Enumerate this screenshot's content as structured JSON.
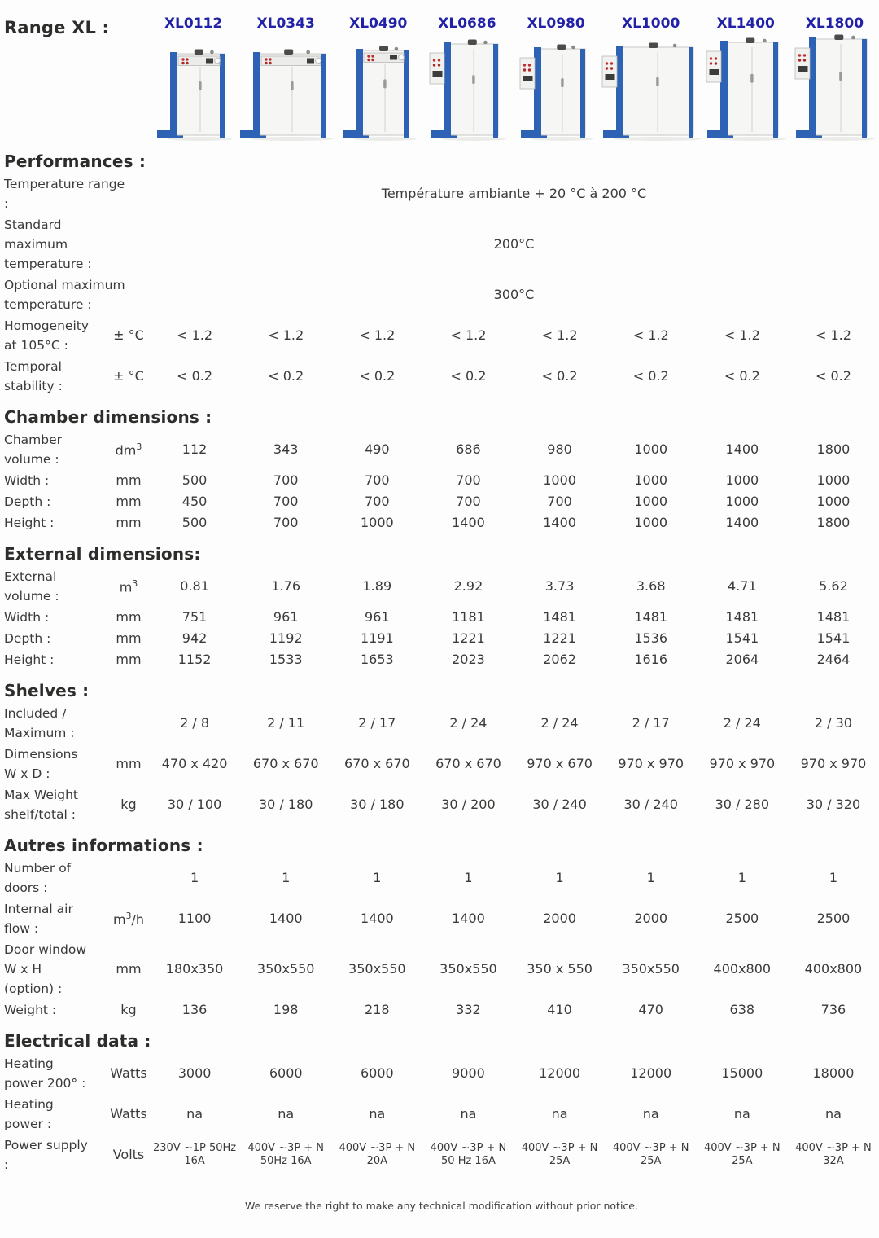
{
  "header": {
    "range_label": "Range XL :",
    "models": [
      "XL0112",
      "XL0343",
      "XL0490",
      "XL0686",
      "XL0980",
      "XL1000",
      "XL1400",
      "XL1800"
    ]
  },
  "colors": {
    "model_name_blue": "#2222a8",
    "oven_frame_blue": "#2d62b5",
    "text_dark": "#3a3a39"
  },
  "sections": [
    {
      "title": "Performances :",
      "rows": [
        {
          "label_lines": [
            "Temperature range",
            ":"
          ],
          "unit": "",
          "span_value": "Température ambiante + 20 °C à 200 °C"
        },
        {
          "label_lines": [
            "Standard",
            "maximum",
            "temperature :"
          ],
          "unit": "",
          "span_value": "200°C"
        },
        {
          "label_lines": [
            "Optional maximum",
            "temperature :"
          ],
          "unit": "",
          "span_value": "300°C"
        },
        {
          "label_lines": [
            "Homogeneity",
            "at 105°C :"
          ],
          "unit": "± °C",
          "values": [
            "< 1.2",
            "< 1.2",
            "< 1.2",
            "< 1.2",
            "< 1.2",
            "< 1.2",
            "< 1.2",
            "< 1.2"
          ]
        },
        {
          "label_lines": [
            "Temporal",
            "stability :"
          ],
          "unit": "± °C",
          "values": [
            "< 0.2",
            "< 0.2",
            "< 0.2",
            "< 0.2",
            "< 0.2",
            "< 0.2",
            "< 0.2",
            "< 0.2"
          ]
        }
      ]
    },
    {
      "title": "Chamber dimensions :",
      "rows": [
        {
          "label_lines": [
            "Chamber",
            "volume :"
          ],
          "unit": "dm³",
          "values": [
            "112",
            "343",
            "490",
            "686",
            "980",
            "1000",
            "1400",
            "1800"
          ]
        },
        {
          "label_lines": [
            "Width :"
          ],
          "unit": "mm",
          "values": [
            "500",
            "700",
            "700",
            "700",
            "1000",
            "1000",
            "1000",
            "1000"
          ]
        },
        {
          "label_lines": [
            "Depth :"
          ],
          "unit": "mm",
          "values": [
            "450",
            "700",
            "700",
            "700",
            "700",
            "1000",
            "1000",
            "1000"
          ]
        },
        {
          "label_lines": [
            "Height :"
          ],
          "unit": "mm",
          "values": [
            "500",
            "700",
            "1000",
            "1400",
            "1400",
            "1000",
            "1400",
            "1800"
          ]
        }
      ]
    },
    {
      "title": "External dimensions:",
      "rows": [
        {
          "label_lines": [
            "External",
            "volume :"
          ],
          "unit": "m³",
          "values": [
            "0.81",
            "1.76",
            "1.89",
            "2.92",
            "3.73",
            "3.68",
            "4.71",
            "5.62"
          ]
        },
        {
          "label_lines": [
            "Width :"
          ],
          "unit": "mm",
          "values": [
            "751",
            "961",
            "961",
            "1181",
            "1481",
            "1481",
            "1481",
            "1481"
          ]
        },
        {
          "label_lines": [
            "Depth :"
          ],
          "unit": "mm",
          "values": [
            "942",
            "1192",
            "1191",
            "1221",
            "1221",
            "1536",
            "1541",
            "1541"
          ]
        },
        {
          "label_lines": [
            "Height :"
          ],
          "unit": "mm",
          "values": [
            "1152",
            "1533",
            "1653",
            "2023",
            "2062",
            "1616",
            "2064",
            "2464"
          ]
        }
      ]
    },
    {
      "title": "Shelves :",
      "rows": [
        {
          "label_lines": [
            "Included /",
            "Maximum :"
          ],
          "unit": "",
          "values": [
            "2 / 8",
            "2 / 11",
            "2 / 17",
            "2 / 24",
            "2 / 24",
            "2 / 17",
            "2 / 24",
            "2 / 30"
          ]
        },
        {
          "label_lines": [
            "Dimensions",
            "W x D :"
          ],
          "unit": "mm",
          "values": [
            "470 x 420",
            "670 x 670",
            "670 x 670",
            "670 x 670",
            "970 x 670",
            "970 x 970",
            "970 x 970",
            "970 x 970"
          ]
        },
        {
          "label_lines": [
            "Max Weight",
            "shelf/total :"
          ],
          "unit": "kg",
          "values": [
            "30 / 100",
            "30 / 180",
            "30 / 180",
            "30 / 200",
            "30 / 240",
            "30 / 240",
            "30 / 280",
            "30 / 320"
          ]
        }
      ]
    },
    {
      "title": "Autres informations :",
      "rows": [
        {
          "label_lines": [
            "Number of",
            "doors :"
          ],
          "unit": "",
          "values": [
            "1",
            "1",
            "1",
            "1",
            "1",
            "1",
            "1",
            "1"
          ]
        },
        {
          "label_lines": [
            "Internal air",
            "flow :"
          ],
          "unit": "m³/h",
          "values": [
            "1100",
            "1400",
            "1400",
            "1400",
            "2000",
            "2000",
            "2500",
            "2500"
          ]
        },
        {
          "label_lines": [
            "Door window",
            "W x H",
            "(option) :"
          ],
          "unit": "mm",
          "values": [
            "180x350",
            "350x550",
            "350x550",
            "350x550",
            "350 x 550",
            "350x550",
            "400x800",
            "400x800"
          ]
        },
        {
          "label_lines": [
            "Weight :"
          ],
          "unit": "kg",
          "values": [
            "136",
            "198",
            "218",
            "332",
            "410",
            "470",
            "638",
            "736"
          ]
        }
      ]
    },
    {
      "title": "Electrical data :",
      "rows": [
        {
          "label_lines": [
            "Heating",
            "power 200° :"
          ],
          "unit": "Watts",
          "values": [
            "3000",
            "6000",
            "6000",
            "9000",
            "12000",
            "12000",
            "15000",
            "18000"
          ]
        },
        {
          "label_lines": [
            "Heating",
            "power :"
          ],
          "unit": "Watts",
          "values": [
            "na",
            "na",
            "na",
            "na",
            "na",
            "na",
            "na",
            "na"
          ]
        },
        {
          "label_lines": [
            "Power supply",
            ":"
          ],
          "unit": "Volts",
          "small": true,
          "values": [
            "230V ~1P 50Hz 16A",
            "400V ~3P + N 50Hz 16A",
            "400V ~3P + N 20A",
            "400V ~3P + N 50 Hz 16A",
            "400V ~3P + N 25A",
            "400V ~3P + N 25A",
            "400V ~3P + N 25A",
            "400V ~3P + N 32A"
          ]
        }
      ]
    }
  ],
  "footer": {
    "note": "We reserve the right to make any technical modification without prior notice."
  }
}
